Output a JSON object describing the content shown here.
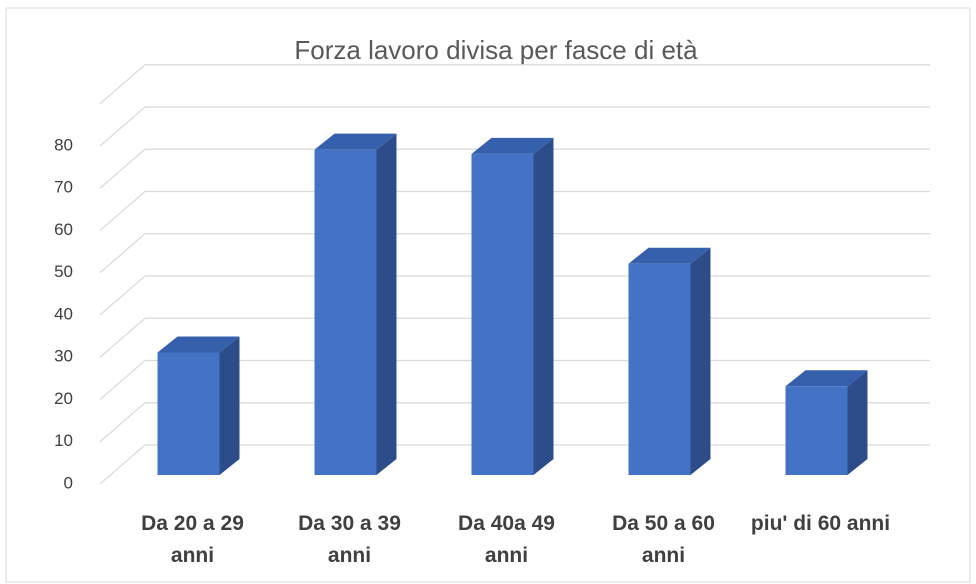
{
  "chart_data": {
    "type": "bar3d",
    "title": "Forza lavoro divisa per fasce di età",
    "categories": [
      "Da 20 a 29 anni",
      "Da 30 a 39 anni",
      "Da 40a 49 anni",
      "Da 50 a 60 anni",
      "piu' di 60 anni"
    ],
    "values": [
      29,
      77,
      76,
      50,
      21
    ],
    "color": "#4472c4",
    "ylim": [
      0,
      90
    ],
    "yticks": [
      0,
      10,
      20,
      30,
      40,
      50,
      60,
      70,
      80
    ],
    "grid": true
  }
}
